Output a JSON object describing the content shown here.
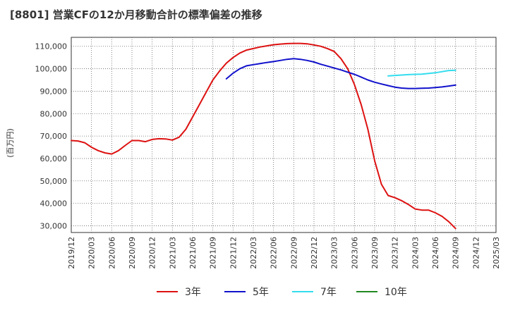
{
  "chart_data": {
    "type": "line",
    "title": "[8801]  営業CFの12か月移動合計の標準偏差の推移",
    "ylabel": "(百万円)",
    "xlabel": "",
    "ylim": [
      27000,
      114000
    ],
    "y_ticks": [
      30000,
      40000,
      50000,
      60000,
      70000,
      80000,
      90000,
      100000,
      110000
    ],
    "y_tick_labels": [
      "30,000",
      "40,000",
      "50,000",
      "60,000",
      "70,000",
      "80,000",
      "90,000",
      "100,000",
      "110,000"
    ],
    "x_ticks": [
      "2019-12",
      "2020-03",
      "2020-06",
      "2020-09",
      "2020-12",
      "2021-03",
      "2021-06",
      "2021-09",
      "2021-12",
      "2022-03",
      "2022-06",
      "2022-09",
      "2022-12",
      "2023-03",
      "2023-06",
      "2023-09",
      "2023-12",
      "2024-03",
      "2024-06",
      "2024-09",
      "2024-12",
      "2025-03"
    ],
    "x_tick_labels": [
      "2019/12",
      "2020/03",
      "2020/06",
      "2020/09",
      "2020/12",
      "2021/03",
      "2021/06",
      "2021/09",
      "2021/12",
      "2022/03",
      "2022/06",
      "2022/09",
      "2022/12",
      "2023/03",
      "2023/06",
      "2023/09",
      "2023/12",
      "2024/03",
      "2024/06",
      "2024/09",
      "2024/12",
      "2025/03"
    ],
    "grid": true,
    "legend_position": "bottom",
    "series": [
      {
        "name": "3年",
        "color": "#dd1111",
        "x": [
          "2019-12",
          "2020-01",
          "2020-02",
          "2020-03",
          "2020-04",
          "2020-05",
          "2020-06",
          "2020-07",
          "2020-08",
          "2020-09",
          "2020-10",
          "2020-11",
          "2020-12",
          "2021-01",
          "2021-02",
          "2021-03",
          "2021-04",
          "2021-05",
          "2021-06",
          "2021-07",
          "2021-08",
          "2021-09",
          "2021-10",
          "2021-11",
          "2021-12",
          "2022-01",
          "2022-02",
          "2022-03",
          "2022-04",
          "2022-05",
          "2022-06",
          "2022-07",
          "2022-08",
          "2022-09",
          "2022-10",
          "2022-11",
          "2022-12",
          "2023-01",
          "2023-02",
          "2023-03",
          "2023-04",
          "2023-05",
          "2023-06",
          "2023-07",
          "2023-08",
          "2023-09",
          "2023-10",
          "2023-11",
          "2023-12",
          "2024-01",
          "2024-02",
          "2024-03",
          "2024-04",
          "2024-05",
          "2024-06",
          "2024-07",
          "2024-08",
          "2024-09"
        ],
        "values": [
          68000,
          67800,
          67000,
          65000,
          63500,
          62500,
          62000,
          63500,
          65800,
          68000,
          68000,
          67500,
          68500,
          68800,
          68700,
          68200,
          69500,
          73000,
          78500,
          84000,
          89500,
          95000,
          99000,
          102500,
          105000,
          107000,
          108300,
          109000,
          109700,
          110200,
          110700,
          111000,
          111200,
          111300,
          111300,
          111100,
          110600,
          110000,
          109000,
          107700,
          104500,
          100000,
          93000,
          84000,
          73000,
          59000,
          48500,
          43500,
          42500,
          41200,
          39500,
          37500,
          37000,
          37000,
          35800,
          34200,
          31800,
          28800
        ]
      },
      {
        "name": "5年",
        "color": "#1111cc",
        "x": [
          "2021-11",
          "2021-12",
          "2022-01",
          "2022-02",
          "2022-03",
          "2022-04",
          "2022-05",
          "2022-06",
          "2022-07",
          "2022-08",
          "2022-09",
          "2022-10",
          "2022-11",
          "2022-12",
          "2023-01",
          "2023-02",
          "2023-03",
          "2023-04",
          "2023-05",
          "2023-06",
          "2023-07",
          "2023-08",
          "2023-09",
          "2023-10",
          "2023-11",
          "2023-12",
          "2024-01",
          "2024-02",
          "2024-03",
          "2024-04",
          "2024-05",
          "2024-06",
          "2024-07",
          "2024-08",
          "2024-09"
        ],
        "values": [
          95500,
          98000,
          100000,
          101300,
          101800,
          102300,
          102800,
          103200,
          103700,
          104200,
          104500,
          104200,
          103700,
          103000,
          102000,
          101200,
          100300,
          99500,
          98500,
          97500,
          96300,
          95000,
          94000,
          93200,
          92500,
          91800,
          91400,
          91200,
          91200,
          91300,
          91400,
          91600,
          91900,
          92300,
          92700
        ]
      },
      {
        "name": "7年",
        "color": "#33ddee",
        "x": [
          "2023-11",
          "2023-12",
          "2024-01",
          "2024-02",
          "2024-03",
          "2024-04",
          "2024-05",
          "2024-06",
          "2024-07",
          "2024-08",
          "2024-09"
        ],
        "values": [
          96800,
          97000,
          97200,
          97400,
          97500,
          97600,
          97900,
          98200,
          98700,
          99200,
          99300
        ]
      },
      {
        "name": "10年",
        "color": "#228822",
        "x": [],
        "values": []
      }
    ]
  }
}
